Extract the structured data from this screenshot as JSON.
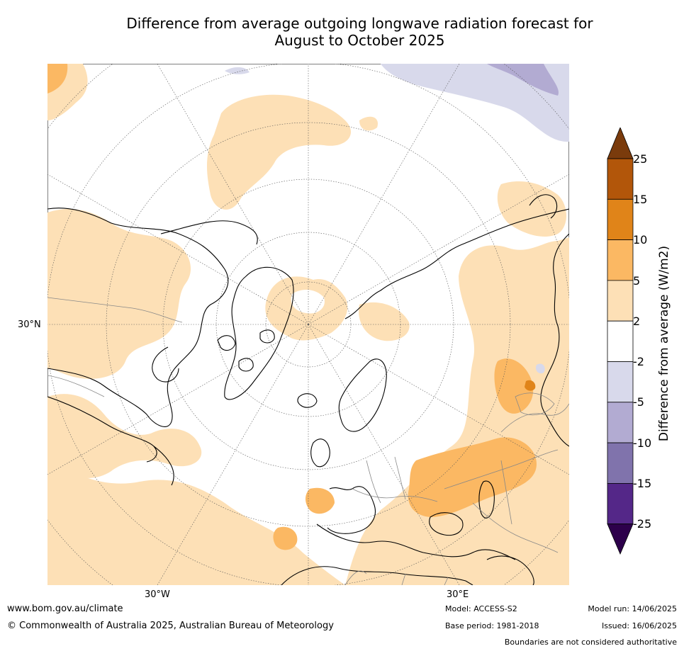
{
  "title": {
    "line1": "Difference from average outgoing longwave radiation forecast for",
    "line2": "August to October 2025"
  },
  "map": {
    "projection": "north-polar-stereographic",
    "lat_label": "30°N",
    "lon_labels": [
      "30°W",
      "30°E"
    ]
  },
  "colorbar": {
    "label": "Difference from average (W/m2)",
    "ticks": [
      "25",
      "15",
      "10",
      "5",
      "2",
      "-2",
      "-5",
      "-10",
      "-15",
      "-25"
    ],
    "colors": {
      "gt25": "#7a3b0c",
      "15_25": "#b2560a",
      "10_15": "#e08419",
      "5_10": "#fbb863",
      "2_5": "#fde0b6",
      "neutral": "#ffffff",
      "m5_m2": "#d8d9eb",
      "m10_m5": "#b2abd2",
      "m15_m10": "#8073ac",
      "m25_m15": "#542788",
      "lt_m25": "#2d004b"
    }
  },
  "footer": {
    "url": "www.bom.gov.au/climate",
    "copyright": "© Commonwealth of Australia 2025, Australian Bureau of Meteorology",
    "model": "Model: ACCESS-S2",
    "base_period": "Base period: 1981-2018",
    "model_run": "Model run: 14/06/2025",
    "issued": "Issued: 16/06/2025",
    "boundaries_note": "Boundaries are not considered authoritative"
  }
}
